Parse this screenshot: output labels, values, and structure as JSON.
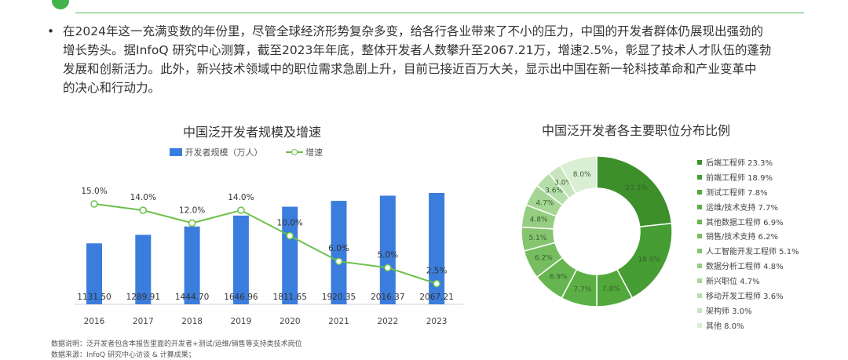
{
  "paragraph": {
    "bullet": "•",
    "lines": [
      "在2024年这一充满变数的年份里，尽管全球经济形势复杂多变，给各行各业带来了不小的压力，中国的开发者群体仍展现出强劲的",
      "增长势头。据InfoQ 研究中心测算，截至2023年年底，整体开发者人数攀升至2067.21万，增速2.5%，彰显了技术人才队伍的蓬勃",
      "发展和创新活力。此外，新兴技术领域中的职位需求急剧上升，目前已接近百万大关，显示出中国在新一轮科技革命和产业变革中",
      "的决心和行动力。"
    ]
  },
  "colors": {
    "accent_green": "#41b34a",
    "bar_blue": "#3b7ddd",
    "line_green": "#6cc04a"
  },
  "chart_data": [
    {
      "type": "bar",
      "title": "中国泛开发者规模及增速",
      "categories": [
        "2016",
        "2017",
        "2018",
        "2019",
        "2020",
        "2021",
        "2022",
        "2023"
      ],
      "series": [
        {
          "name": "开发者规模（万人）",
          "type": "bar",
          "values": [
            1131.5,
            1289.91,
            1444.7,
            1646.96,
            1811.65,
            1920.35,
            2016.37,
            2067.21
          ],
          "labels": [
            "1131.50",
            "1289.91",
            "1444.70",
            "1646.96",
            "1811.65",
            "1920.35",
            "2016.37",
            "2067.21"
          ]
        },
        {
          "name": "增速",
          "type": "line",
          "values": [
            15.0,
            14.0,
            12.0,
            14.0,
            10.0,
            6.0,
            5.0,
            2.5
          ],
          "labels": [
            "15.0%",
            "14.0%",
            "12.0%",
            "14.0%",
            "10.0%",
            "6.0%",
            "5.0%",
            "2.5%"
          ]
        }
      ],
      "bar_ylim": [
        0,
        2250
      ],
      "line_ylim": [
        0,
        30
      ],
      "legend_position": "top",
      "grid": false
    },
    {
      "type": "pie",
      "variant": "donut",
      "title": "中国泛开发者各主要职位分布比例",
      "slices": [
        {
          "name": "后端工程师",
          "value": 23.3,
          "label": "23.3%",
          "color": "#3d8f2c"
        },
        {
          "name": "前端工程师",
          "value": 18.9,
          "label": "18.9%",
          "color": "#459d33"
        },
        {
          "name": "测试工程师",
          "value": 7.8,
          "label": "7.8%",
          "color": "#52a83b"
        },
        {
          "name": "运维/技术支持",
          "value": 7.7,
          "label": "7.7%",
          "color": "#5caf45"
        },
        {
          "name": "其他数据工程师",
          "value": 6.9,
          "label": "6.9%",
          "color": "#67b550"
        },
        {
          "name": "销售/技术支持",
          "value": 6.2,
          "label": "6.2%",
          "color": "#75bd5e"
        },
        {
          "name": "人工智能开发工程师",
          "value": 5.1,
          "label": "5.1%",
          "color": "#85c56f"
        },
        {
          "name": "数据分析工程师",
          "value": 4.8,
          "label": "4.8%",
          "color": "#95cd81"
        },
        {
          "name": "新兴职位",
          "value": 4.7,
          "label": "4.7%",
          "color": "#a6d695"
        },
        {
          "name": "移动开发工程师",
          "value": 3.6,
          "label": "3.6%",
          "color": "#b6deaa"
        },
        {
          "name": "架构师",
          "value": 3.0,
          "label": "3.0%",
          "color": "#c8e6be"
        },
        {
          "name": "其他",
          "value": 8.0,
          "label": "8.0%",
          "color": "#d9eed2"
        }
      ],
      "legend_position": "right"
    }
  ],
  "footnotes": [
    "数据说明：泛开发者包含本报告里面的开发者+测试/运维/销售等支持类技术岗位",
    "数据来源：InfoQ 研究中心访谈 & 计算成果；"
  ]
}
